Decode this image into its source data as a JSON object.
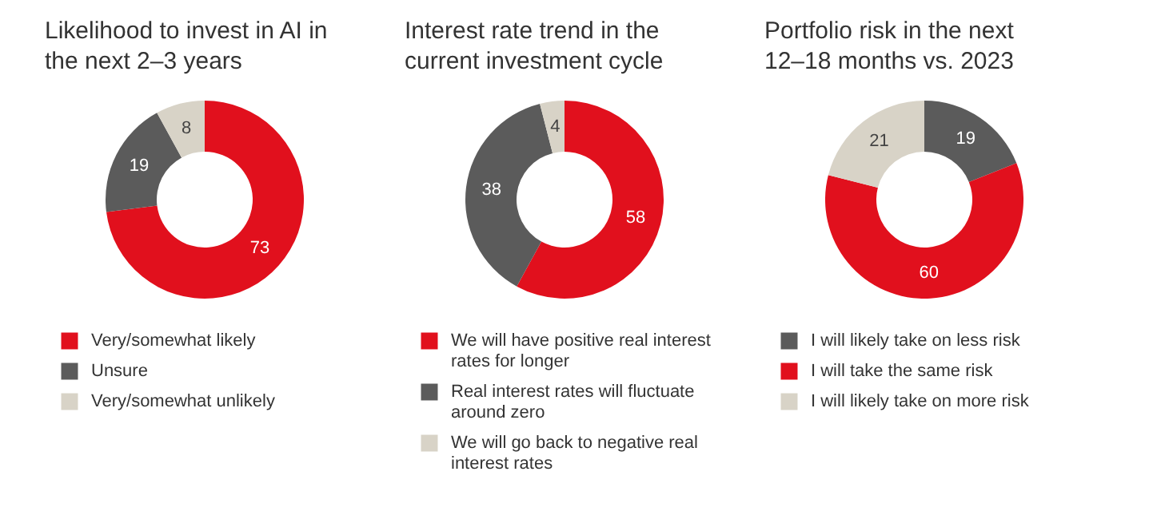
{
  "chart_data": [
    {
      "type": "donut",
      "title": "Likelihood to invest in AI in the next 2–3 years",
      "categories": [
        "Very/somewhat likely",
        "Unsure",
        "Very/somewhat unlikely"
      ],
      "values": [
        73,
        19,
        8
      ],
      "colors": [
        "#e1101d",
        "#5b5b5b",
        "#d8d3c7"
      ],
      "data_labels": true,
      "legend": "bottom"
    },
    {
      "type": "donut",
      "title": "Interest rate trend in the current investment cycle",
      "categories": [
        "We will have positive real interest rates for longer",
        "Real interest rates will fluctuate around zero",
        "We will go back to negative real interest rates"
      ],
      "values": [
        58,
        38,
        4
      ],
      "colors": [
        "#e1101d",
        "#5b5b5b",
        "#d8d3c7"
      ],
      "data_labels": true,
      "legend": "bottom"
    },
    {
      "type": "donut",
      "title": "Portfolio risk in the next 12–18 months vs. 2023",
      "categories": [
        "I will likely take on less risk",
        "I will take the same risk",
        "I will likely take on more risk"
      ],
      "values": [
        19,
        60,
        21
      ],
      "colors": [
        "#5b5b5b",
        "#e1101d",
        "#d8d3c7"
      ],
      "data_labels": true,
      "legend": "bottom"
    }
  ]
}
